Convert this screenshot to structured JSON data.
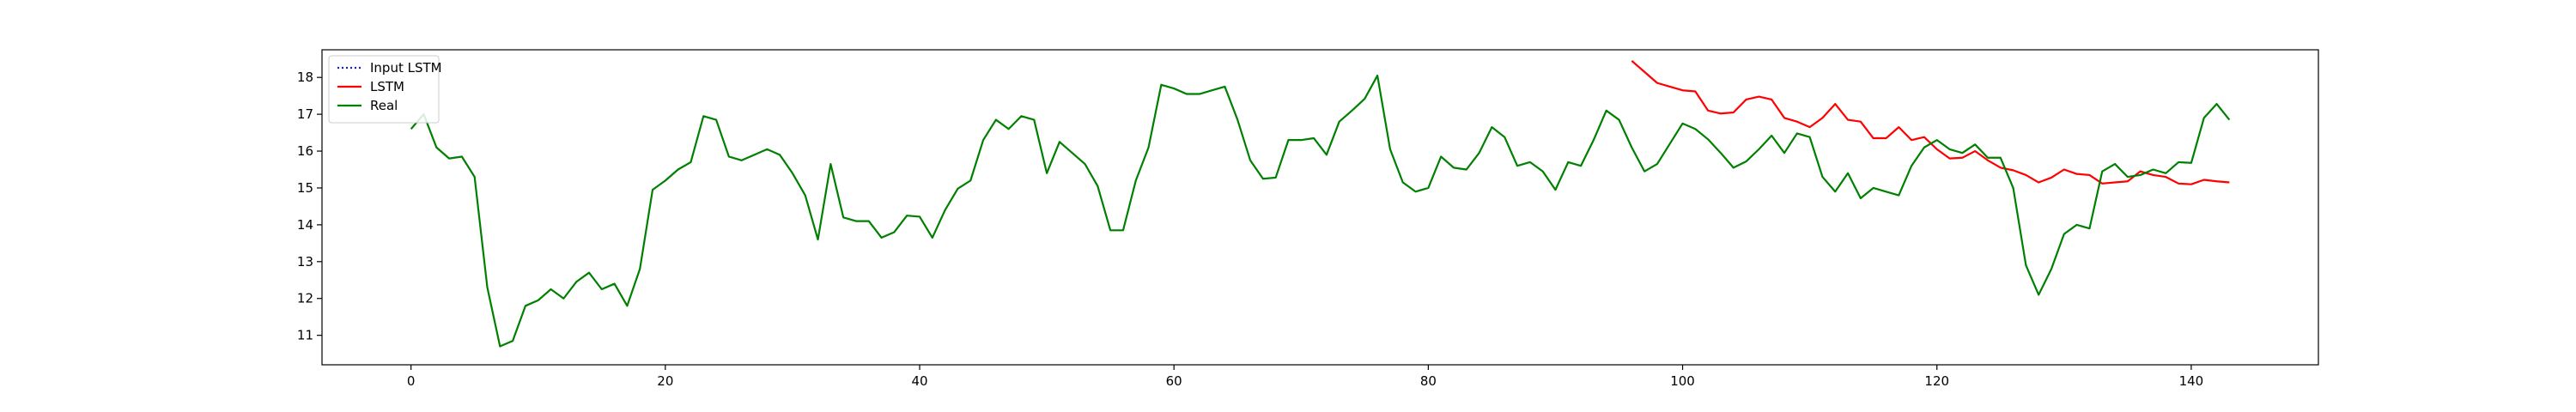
{
  "chart_data": {
    "type": "line",
    "title": "",
    "xlabel": "",
    "ylabel": "",
    "xlim": [
      -7,
      150
    ],
    "ylim": [
      10.2,
      18.75
    ],
    "xticks": [
      0,
      20,
      40,
      60,
      80,
      100,
      120,
      140
    ],
    "yticks": [
      11,
      12,
      13,
      14,
      15,
      16,
      17,
      18
    ],
    "grid": false,
    "legend_position": "top-left",
    "series": [
      {
        "name": "Input LSTM",
        "color": "#1f1fbf",
        "style": "dotted",
        "x": [],
        "values": []
      },
      {
        "name": "LSTM",
        "color": "#ff0000",
        "style": "solid",
        "x": [
          96,
          97,
          98,
          99,
          100,
          101,
          102,
          103,
          104,
          105,
          106,
          107,
          108,
          109,
          110,
          111,
          112,
          113,
          114,
          115,
          116,
          117,
          118,
          119,
          120,
          121,
          122,
          123,
          124,
          125,
          126,
          127,
          128,
          129,
          130,
          131,
          132,
          133,
          134,
          135,
          136,
          137,
          138,
          139,
          140,
          141,
          142,
          143
        ],
        "values": [
          18.45,
          18.15,
          17.85,
          17.75,
          17.65,
          17.62,
          17.1,
          17.02,
          17.05,
          17.4,
          17.48,
          17.4,
          16.9,
          16.8,
          16.65,
          16.9,
          17.28,
          16.85,
          16.8,
          16.35,
          16.35,
          16.65,
          16.3,
          16.38,
          16.05,
          15.8,
          15.82,
          16.0,
          15.75,
          15.55,
          15.48,
          15.35,
          15.15,
          15.28,
          15.5,
          15.38,
          15.35,
          15.12,
          15.15,
          15.18,
          15.45,
          15.35,
          15.3,
          15.12,
          15.1,
          15.22,
          15.18,
          15.15
        ]
      },
      {
        "name": "Real",
        "color": "#008000",
        "style": "solid",
        "x": [
          0,
          1,
          2,
          3,
          4,
          5,
          6,
          7,
          8,
          9,
          10,
          11,
          12,
          13,
          14,
          15,
          16,
          17,
          18,
          19,
          20,
          21,
          22,
          23,
          24,
          25,
          26,
          27,
          28,
          29,
          30,
          31,
          32,
          33,
          34,
          35,
          36,
          37,
          38,
          39,
          40,
          41,
          42,
          43,
          44,
          45,
          46,
          47,
          48,
          49,
          50,
          51,
          52,
          53,
          54,
          55,
          56,
          57,
          58,
          59,
          60,
          61,
          62,
          63,
          64,
          65,
          66,
          67,
          68,
          69,
          70,
          71,
          72,
          73,
          74,
          75,
          76,
          77,
          78,
          79,
          80,
          81,
          82,
          83,
          84,
          85,
          86,
          87,
          88,
          89,
          90,
          91,
          92,
          93,
          94,
          95,
          96,
          97,
          98,
          99,
          100,
          101,
          102,
          103,
          104,
          105,
          106,
          107,
          108,
          109,
          110,
          111,
          112,
          113,
          114,
          115,
          116,
          117,
          118,
          119,
          120,
          121,
          122,
          123,
          124,
          125,
          126,
          127,
          128,
          129,
          130,
          131,
          132,
          133,
          134,
          135,
          136,
          137,
          138,
          139,
          140,
          141,
          142,
          143
        ],
        "values": [
          16.6,
          17.0,
          16.1,
          15.8,
          15.85,
          15.3,
          12.3,
          10.7,
          10.85,
          11.8,
          11.95,
          12.25,
          12.0,
          12.45,
          12.7,
          12.25,
          12.4,
          11.8,
          12.8,
          14.95,
          15.2,
          15.5,
          15.7,
          16.95,
          16.85,
          15.85,
          15.75,
          15.9,
          16.05,
          15.9,
          15.4,
          14.8,
          13.6,
          15.65,
          14.2,
          14.1,
          14.1,
          13.65,
          13.8,
          14.25,
          14.22,
          13.65,
          14.4,
          14.98,
          15.2,
          16.3,
          16.85,
          16.6,
          16.95,
          16.85,
          15.4,
          16.25,
          15.95,
          15.65,
          15.05,
          13.85,
          13.85,
          15.2,
          16.1,
          17.8,
          17.7,
          17.55,
          17.55,
          17.65,
          17.75,
          16.85,
          15.75,
          15.25,
          15.28,
          16.3,
          16.3,
          16.35,
          15.9,
          16.8,
          17.1,
          17.42,
          18.05,
          16.05,
          15.15,
          14.9,
          15.0,
          15.85,
          15.55,
          15.5,
          15.95,
          16.65,
          16.38,
          15.6,
          15.7,
          15.45,
          14.95,
          15.7,
          15.6,
          16.3,
          17.1,
          16.85,
          16.1,
          15.45,
          15.65,
          16.2,
          16.75,
          16.6,
          16.32,
          15.95,
          15.55,
          15.72,
          16.05,
          16.42,
          15.95,
          16.48,
          16.38,
          15.3,
          14.9,
          15.4,
          14.72,
          15.0,
          14.9,
          14.8,
          15.6,
          16.1,
          16.3,
          16.05,
          15.95,
          16.18,
          15.82,
          15.82,
          15.0,
          12.9,
          12.1,
          12.8,
          13.75,
          14.0,
          13.9,
          15.45,
          15.65,
          15.3,
          15.35,
          15.5,
          15.4,
          15.7,
          15.68,
          16.9,
          17.28,
          16.85
        ]
      }
    ]
  }
}
